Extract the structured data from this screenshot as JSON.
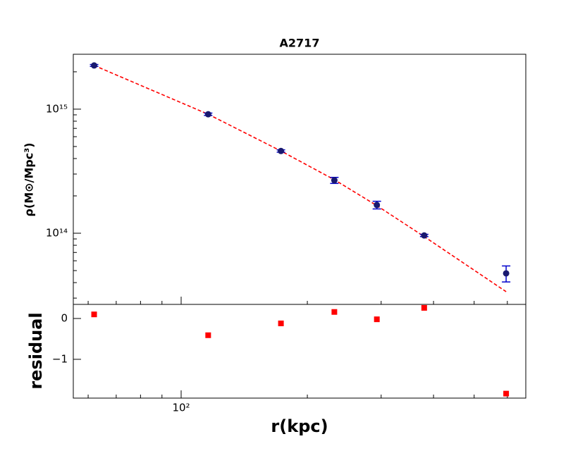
{
  "chart_data": [
    {
      "type": "scatter",
      "title": "A2717",
      "ylabel": "ρ(M⊙/Mpc³)",
      "x": [
        62,
        116,
        173,
        232,
        293,
        380,
        596
      ],
      "xlim": [
        55.3,
        664
      ],
      "xscale": "log",
      "ylim": [
        26700000000000.0,
        2770000000000000.0
      ],
      "yscale": "log",
      "yticks": [
        {
          "value": 100000000000000.0,
          "label": "10¹⁴"
        },
        {
          "value": 1000000000000000.0,
          "label": "10¹⁵"
        }
      ],
      "yticks_minor": [
        30000000000000.0,
        40000000000000.0,
        50000000000000.0,
        60000000000000.0,
        70000000000000.0,
        80000000000000.0,
        90000000000000.0,
        200000000000000.0,
        300000000000000.0,
        400000000000000.0,
        500000000000000.0,
        600000000000000.0,
        700000000000000.0,
        800000000000000.0,
        900000000000000.0,
        2000000000000000.0
      ],
      "data": {
        "color": "#191970",
        "error_color": "#0000cd",
        "values": [
          2250000000000000.0,
          910000000000000.0,
          460000000000000.0,
          267000000000000.0,
          169000000000000.0,
          96000000000000.0,
          47500000000000.0
        ],
        "errors": [
          40000000000000.0,
          20000000000000.0,
          10000000000000.0,
          15000000000000.0,
          12000000000000.0,
          2000000000000.0,
          7000000000000.0
        ]
      },
      "fit": {
        "color": "#ff0000",
        "dashed": true,
        "values": [
          2250000000000000.0,
          910000000000000.0,
          460000000000000.0,
          270000000000000.0,
          167000000000000.0,
          94000000000000.0,
          33800000000000.0
        ]
      }
    },
    {
      "type": "scatter",
      "xlabel": "r(kpc)",
      "ylabel": "residual",
      "color": "#ff0000",
      "values": [
        0.1,
        -0.41,
        -0.12,
        0.16,
        -0.02,
        0.26,
        -1.84
      ],
      "ylim": [
        -1.95,
        0.345
      ],
      "yticks": [
        0,
        {
          "value": -1,
          "label": "−1"
        }
      ],
      "xticks": [
        {
          "value": 100,
          "label": "10²"
        }
      ],
      "xticks_minor": [
        60,
        70,
        80,
        90,
        200,
        300,
        400,
        500,
        600
      ]
    }
  ]
}
